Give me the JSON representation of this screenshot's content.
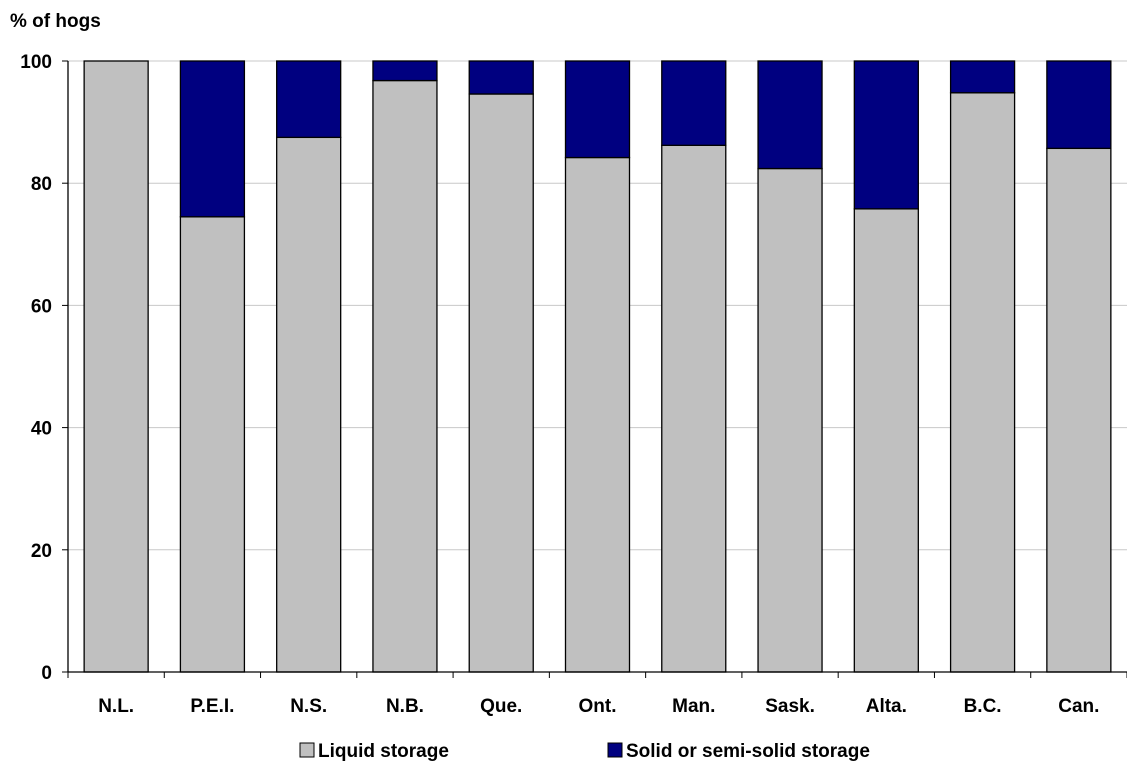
{
  "chart_data": {
    "type": "bar",
    "stacked": true,
    "ylabel": "% of hogs",
    "xlabel": "",
    "ylim": [
      0,
      100
    ],
    "yticks": [
      "0",
      "20",
      "40",
      "60",
      "80",
      "100"
    ],
    "grid": true,
    "legend_position": "bottom",
    "categories": [
      "N.L.",
      "P.E.I.",
      "N.S.",
      "N.B.",
      "Que.",
      "Ont.",
      "Man.",
      "Sask.",
      "Alta.",
      "B.C.",
      "Can."
    ],
    "series": [
      {
        "name": "Liquid storage",
        "color": "#C0C0C0",
        "values": [
          100,
          74.5,
          87.5,
          96.8,
          94.6,
          84.2,
          86.2,
          82.4,
          75.8,
          94.8,
          85.7
        ]
      },
      {
        "name": "Solid or semi-solid storage",
        "color": "#000080",
        "values": [
          0,
          25.5,
          12.5,
          3.2,
          5.4,
          15.8,
          13.8,
          17.6,
          24.2,
          5.2,
          14.3
        ]
      }
    ]
  }
}
